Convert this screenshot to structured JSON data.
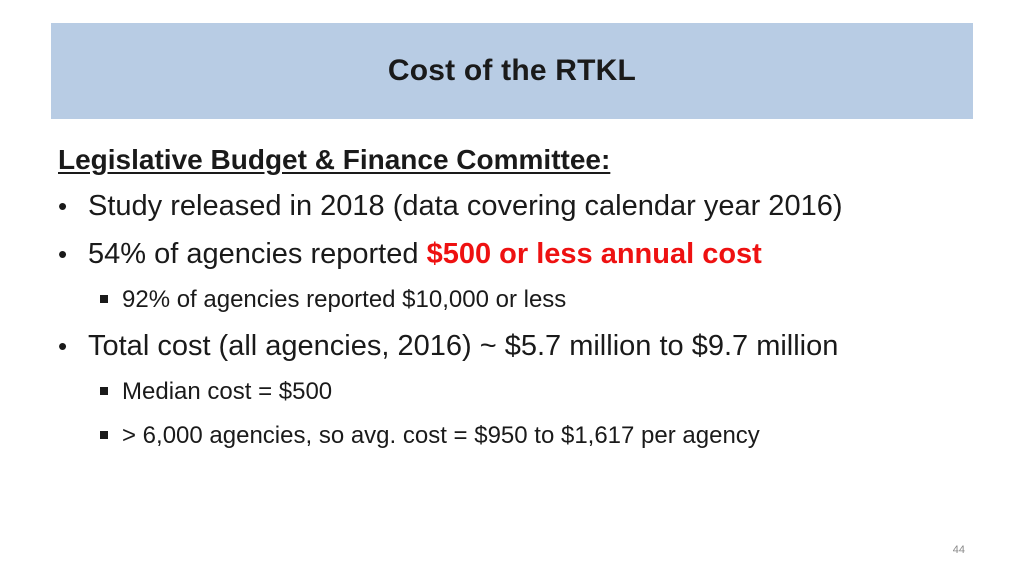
{
  "slide": {
    "title": "Cost of the RTKL",
    "heading": "Legislative Budget & Finance Committee:",
    "bullets": [
      {
        "text": "Study released in 2018 (data covering calendar year 2016)"
      },
      {
        "text": "54% of agencies reported ",
        "emphasis": "$500 or less annual cost",
        "subs": [
          "92% of agencies reported $10,000 or less"
        ]
      },
      {
        "text": "Total cost (all agencies, 2016) ~ $5.7 million to $9.7 million",
        "subs": [
          "Median cost = $500",
          "> 6,000 agencies, so avg. cost = $950 to $1,617 per agency"
        ]
      }
    ],
    "page_number": "44",
    "colors": {
      "title_bar": "#b8cce4",
      "emphasis": "#ee1111"
    }
  }
}
